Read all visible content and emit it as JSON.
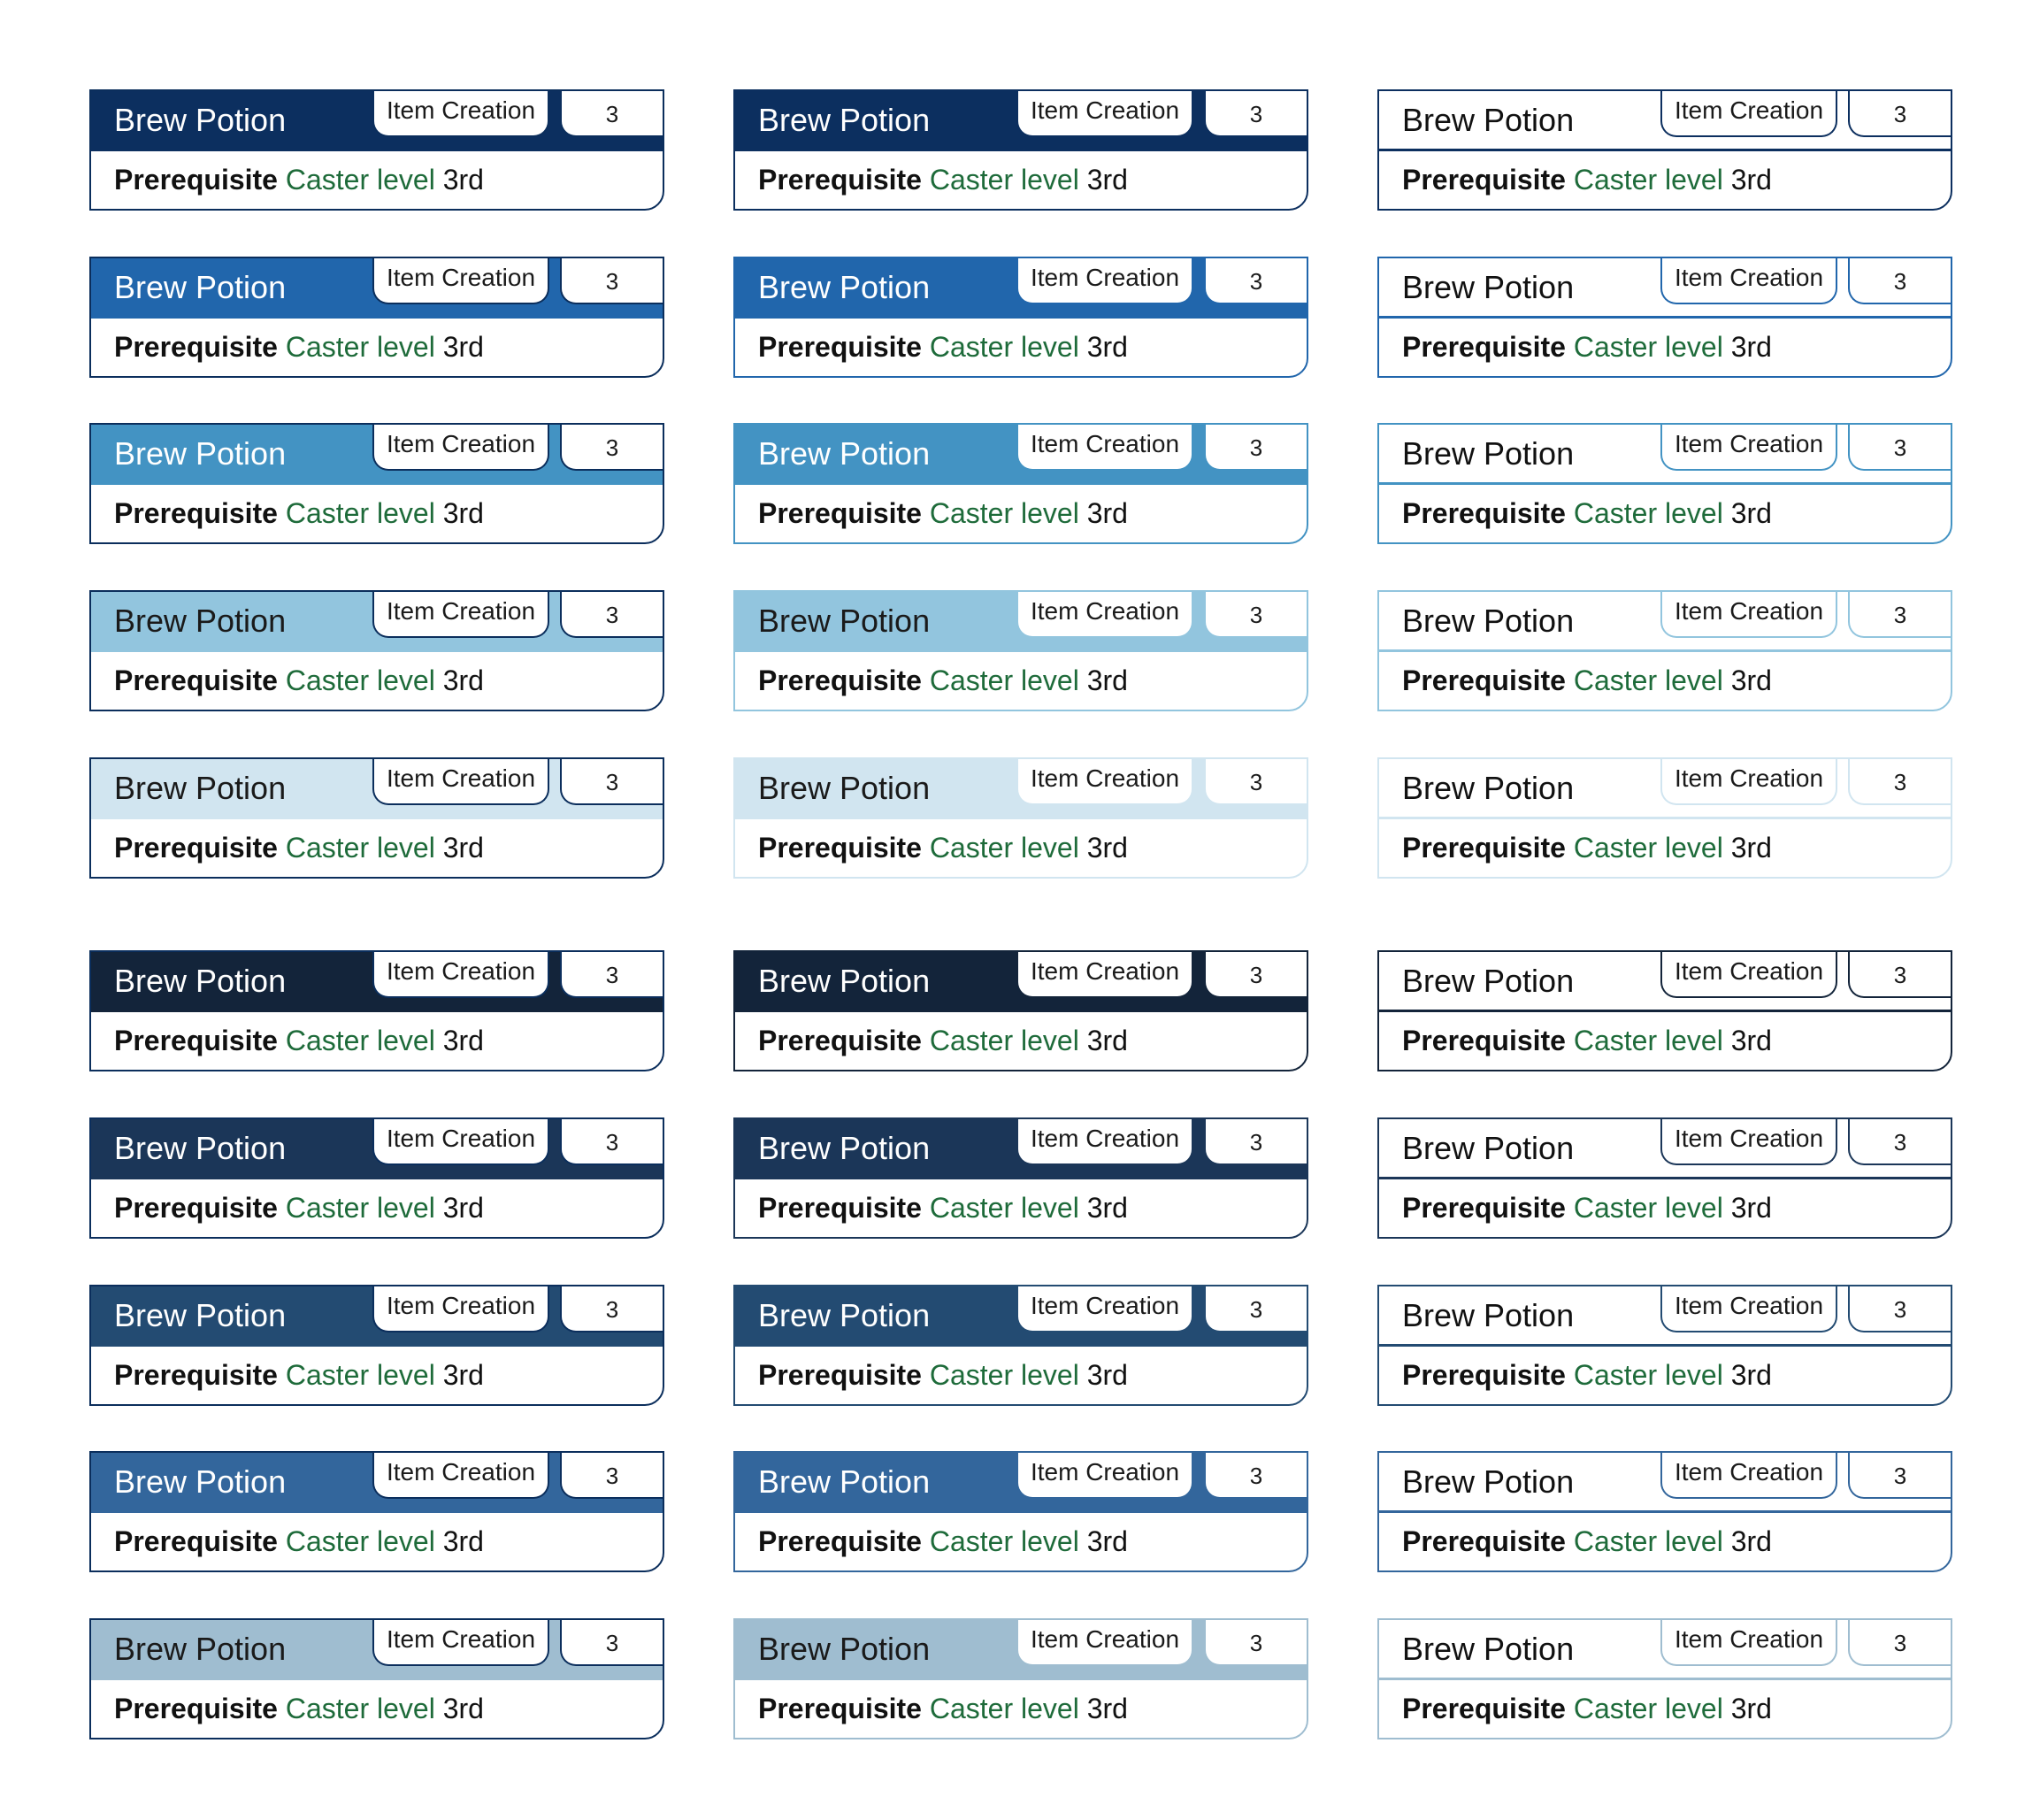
{
  "card": {
    "title": "Brew Potion",
    "category": "Item Creation",
    "count": "3",
    "prerequisite_label": "Prerequisite",
    "prerequisite_skill": "Caster level",
    "prerequisite_value": "3rd"
  },
  "styles": {
    "columns": [
      "filled",
      "filled-tinted-border",
      "outline"
    ],
    "palette_top": [
      "#0c2f5f",
      "#2166ac",
      "#4393c3",
      "#92c5de",
      "#d1e5f0"
    ],
    "palette_bottom": [
      "#13243a",
      "#1b3658",
      "#234b72",
      "#33669c",
      "#9fbdd0"
    ],
    "title_colors_top": [
      "#ffffff",
      "#ffffff",
      "#ffffff",
      "#1a1a1a",
      "#1a1a1a"
    ],
    "title_colors_bottom": [
      "#ffffff",
      "#ffffff",
      "#ffffff",
      "#ffffff",
      "#1a1a1a"
    ],
    "skill_color": "#1e6b3a"
  }
}
